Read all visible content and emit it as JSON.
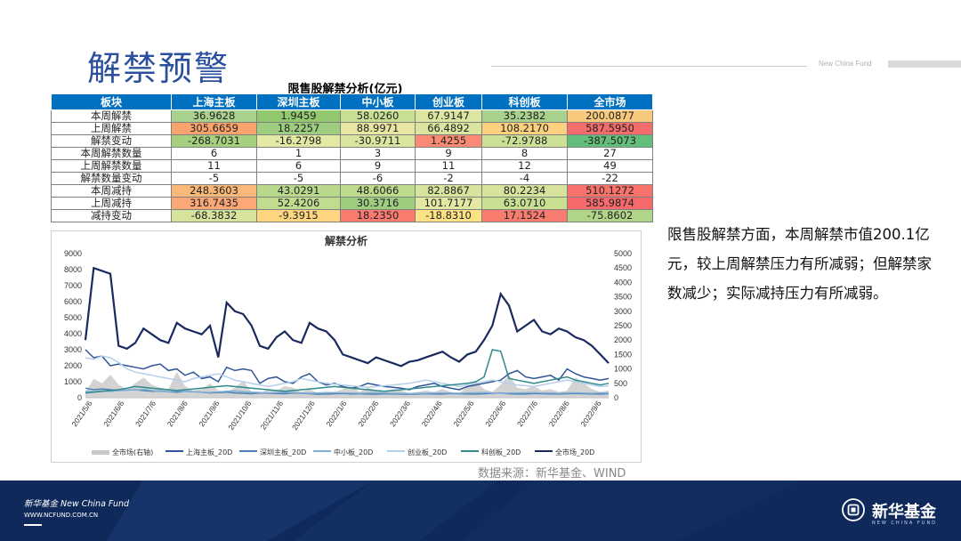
{
  "page": {
    "title": "解禁预警",
    "header_brand": "New China Fund",
    "table_title": "限售股解禁分析(亿元)",
    "source": "数据来源：新华基金、WIND",
    "note": "限售股解禁方面，本周解禁市值200.1亿元，较上周解禁压力有所减弱；但解禁家数减少；实际减持压力有所减弱。",
    "footer": {
      "brand": "新华基金 New China Fund",
      "url": "WWW.NCFUND.COM.CN",
      "logo_text": "新华基金",
      "logo_sub": "NEW CHINA FUND"
    }
  },
  "colors": {
    "header_blue": "#0070c0",
    "title_blue": "#2a4f9c",
    "footer_navy": "#0f2a5a"
  },
  "table": {
    "headers": [
      "板块",
      "上海主板",
      "深圳主板",
      "中小板",
      "创业板",
      "科创板",
      "全市场"
    ],
    "rows": [
      {
        "label": "本周解禁",
        "cells": [
          {
            "v": "36.9628",
            "c": "#a9d18e"
          },
          {
            "v": "1.9459",
            "c": "#92c96f"
          },
          {
            "v": "58.0260",
            "c": "#c6df93"
          },
          {
            "v": "67.9147",
            "c": "#dde6a0"
          },
          {
            "v": "35.2382",
            "c": "#a9d18e"
          },
          {
            "v": "200.0877",
            "c": "#f8c97d"
          }
        ]
      },
      {
        "label": "上周解禁",
        "cells": [
          {
            "v": "305.6659",
            "c": "#f9a46d"
          },
          {
            "v": "18.2257",
            "c": "#9fcd80"
          },
          {
            "v": "88.9971",
            "c": "#e9e6a4"
          },
          {
            "v": "66.4892",
            "c": "#dbe5a0"
          },
          {
            "v": "108.2170",
            "c": "#fbd17f"
          },
          {
            "v": "587.5950",
            "c": "#f56c6c"
          }
        ]
      },
      {
        "label": "解禁变动",
        "cells": [
          {
            "v": "-268.7031",
            "c": "#a6d07e"
          },
          {
            "v": "-16.2798",
            "c": "#e3e8a2"
          },
          {
            "v": "-30.9711",
            "c": "#dbe59f"
          },
          {
            "v": "1.4255",
            "c": "#f98a73"
          },
          {
            "v": "-72.9788",
            "c": "#cce196"
          },
          {
            "v": "-387.5073",
            "c": "#63be7b"
          }
        ]
      },
      {
        "label": "本周解禁数量",
        "cells": [
          {
            "v": "6",
            "c": "#ffffff"
          },
          {
            "v": "1",
            "c": "#ffffff"
          },
          {
            "v": "3",
            "c": "#ffffff"
          },
          {
            "v": "9",
            "c": "#ffffff"
          },
          {
            "v": "8",
            "c": "#ffffff"
          },
          {
            "v": "27",
            "c": "#ffffff"
          }
        ]
      },
      {
        "label": "上周解禁数量",
        "cells": [
          {
            "v": "11",
            "c": "#ffffff"
          },
          {
            "v": "6",
            "c": "#ffffff"
          },
          {
            "v": "9",
            "c": "#ffffff"
          },
          {
            "v": "11",
            "c": "#ffffff"
          },
          {
            "v": "12",
            "c": "#ffffff"
          },
          {
            "v": "49",
            "c": "#ffffff"
          }
        ]
      },
      {
        "label": "解禁数量变动",
        "cells": [
          {
            "v": "-5",
            "c": "#ffffff"
          },
          {
            "v": "-5",
            "c": "#ffffff"
          },
          {
            "v": "-6",
            "c": "#ffffff"
          },
          {
            "v": "-2",
            "c": "#ffffff"
          },
          {
            "v": "-4",
            "c": "#ffffff"
          },
          {
            "v": "-22",
            "c": "#ffffff"
          }
        ]
      },
      {
        "label": "本周减持",
        "cells": [
          {
            "v": "248.3603",
            "c": "#fbb979"
          },
          {
            "v": "43.0291",
            "c": "#b8d98b"
          },
          {
            "v": "48.6066",
            "c": "#bcdb8c"
          },
          {
            "v": "82.8867",
            "c": "#d7e49e"
          },
          {
            "v": "80.2234",
            "c": "#d5e39d"
          },
          {
            "v": "510.1272",
            "c": "#f8726c"
          }
        ]
      },
      {
        "label": "上周减持",
        "cells": [
          {
            "v": "316.7435",
            "c": "#fca776"
          },
          {
            "v": "52.4206",
            "c": "#c0dc8e"
          },
          {
            "v": "30.3716",
            "c": "#9ecd80"
          },
          {
            "v": "101.7177",
            "c": "#e3e8a3"
          },
          {
            "v": "63.0710",
            "c": "#c9e093"
          },
          {
            "v": "585.9874",
            "c": "#f8696b"
          }
        ]
      },
      {
        "label": "减持变动",
        "cells": [
          {
            "v": "-68.3832",
            "c": "#d6e39d"
          },
          {
            "v": "-9.3915",
            "c": "#fed680"
          },
          {
            "v": "18.2350",
            "c": "#f97a6f"
          },
          {
            "v": "-18.8310",
            "c": "#fde283"
          },
          {
            "v": "17.1524",
            "c": "#f97c70"
          },
          {
            "v": "-75.8602",
            "c": "#b2d689"
          }
        ]
      }
    ]
  },
  "chart_data": {
    "type": "line",
    "title": "解禁分析",
    "y_left_ticks": [
      "0",
      "1000",
      "2000",
      "3000",
      "4000",
      "5000",
      "6000",
      "7000",
      "8000",
      "9000"
    ],
    "y_right_ticks": [
      "0",
      "500",
      "1000",
      "1500",
      "2000",
      "2500",
      "3000",
      "3500",
      "4000",
      "4500",
      "5000"
    ],
    "ylim_left": [
      0,
      9000
    ],
    "ylim_right": [
      0,
      5000
    ],
    "x_ticks": [
      "2021/5/6",
      "2021/6/6",
      "2021/7/6",
      "2021/8/6",
      "2021/9/6",
      "2021/10/6",
      "2021/11/6",
      "2021/12/6",
      "2022/1/6",
      "2022/2/6",
      "2022/3/6",
      "2022/4/6",
      "2022/5/6",
      "2022/6/6",
      "2022/7/6",
      "2022/8/6",
      "2022/9/6"
    ],
    "legend_position": "bottom",
    "series": [
      {
        "name": "全市场(右轴)",
        "axis": "right",
        "color": "#c8c8c8",
        "style": "area",
        "values": [
          200,
          650,
          500,
          800,
          450,
          300,
          500,
          700,
          450,
          350,
          300,
          900,
          400,
          250,
          300,
          500,
          250,
          200,
          350,
          600,
          200,
          150,
          300,
          250,
          400,
          350,
          200,
          300,
          150,
          200,
          200,
          300,
          400,
          200,
          350,
          250,
          200,
          300,
          250,
          150,
          200,
          250,
          200,
          300,
          200,
          150,
          400,
          550,
          300,
          200,
          450,
          800,
          350,
          300,
          400,
          250,
          300,
          200,
          250,
          700,
          500,
          300,
          200,
          250
        ]
      },
      {
        "name": "上海主板_20D",
        "axis": "left",
        "color": "#2f5597",
        "style": "line",
        "values": [
          3000,
          2500,
          2600,
          2000,
          2100,
          2000,
          1900,
          1800,
          2000,
          2100,
          1700,
          1800,
          1400,
          1600,
          1200,
          1300,
          1000,
          1900,
          1700,
          1800,
          1700,
          900,
          1200,
          1300,
          1000,
          900,
          1300,
          1500,
          1000,
          800,
          900,
          700,
          600,
          700,
          900,
          800,
          700,
          650,
          600,
          500,
          700,
          800,
          900,
          700,
          600,
          500,
          700,
          800,
          900,
          1000,
          1100,
          1500,
          1700,
          1300,
          1200,
          1300,
          1400,
          1100,
          1800,
          1500,
          1300,
          1200,
          1100,
          1200
        ]
      },
      {
        "name": "深圳主板_20D",
        "axis": "left",
        "color": "#4a7fb5",
        "style": "line",
        "values": [
          600,
          500,
          550,
          500,
          450,
          480,
          500,
          450,
          400,
          420,
          380,
          350,
          400,
          380,
          350,
          300,
          320,
          350,
          300,
          280,
          250,
          300,
          280,
          260,
          250,
          300,
          280,
          250,
          220,
          230,
          250,
          260,
          240,
          250,
          230,
          220,
          250,
          240,
          230,
          220,
          230,
          250,
          240,
          230,
          260,
          250,
          240,
          230,
          250,
          280,
          300,
          250,
          230,
          240,
          260,
          250,
          240,
          230,
          250,
          260,
          250,
          240,
          230,
          250
        ]
      },
      {
        "name": "中小板_20D",
        "axis": "left",
        "color": "#7faed8",
        "style": "line",
        "values": [
          400,
          380,
          420,
          400,
          450,
          500,
          480,
          520,
          450,
          400,
          380,
          420,
          400,
          380,
          350,
          330,
          360,
          400,
          420,
          380,
          350,
          330,
          300,
          320,
          350,
          330,
          300,
          280,
          300,
          320,
          310,
          300,
          290,
          280,
          300,
          310,
          290,
          280,
          270,
          260,
          270,
          280,
          290,
          300,
          290,
          280,
          300,
          310,
          320,
          300,
          280,
          290,
          300,
          310,
          320,
          300,
          290,
          280,
          300,
          310,
          290,
          280,
          300,
          290
        ]
      },
      {
        "name": "创业板_20D",
        "axis": "left",
        "color": "#b4cfe9",
        "style": "line",
        "values": [
          2500,
          2400,
          2600,
          2500,
          2200,
          1800,
          1600,
          1500,
          1400,
          1300,
          1200,
          1100,
          1000,
          1200,
          1300,
          1400,
          1500,
          1300,
          1100,
          1000,
          900,
          800,
          700,
          800,
          900,
          1000,
          1200,
          1100,
          1000,
          900,
          850,
          800,
          750,
          700,
          650,
          700,
          750,
          800,
          850,
          900,
          1000,
          1100,
          1000,
          900,
          800,
          700,
          800,
          900,
          1000,
          1100,
          1000,
          900,
          800,
          750,
          700,
          800,
          900,
          1000,
          1100,
          1000,
          900,
          800,
          700,
          750
        ]
      },
      {
        "name": "科创板_20D",
        "axis": "left",
        "color": "#2e8b8b",
        "style": "line",
        "values": [
          300,
          350,
          400,
          450,
          500,
          600,
          700,
          650,
          600,
          550,
          500,
          450,
          500,
          550,
          600,
          650,
          700,
          750,
          700,
          650,
          600,
          550,
          500,
          450,
          400,
          450,
          500,
          550,
          600,
          650,
          700,
          650,
          600,
          550,
          500,
          450,
          400,
          450,
          500,
          550,
          600,
          650,
          700,
          750,
          800,
          850,
          900,
          1000,
          1300,
          3000,
          2900,
          1200,
          1100,
          1000,
          900,
          1000,
          1100,
          1200,
          1300,
          1100,
          1000,
          900,
          800,
          900
        ]
      },
      {
        "name": "全市场_20D",
        "axis": "right",
        "color": "#1a2a5e",
        "style": "line",
        "values": [
          2000,
          4500,
          4400,
          4300,
          1800,
          1700,
          1900,
          2400,
          2200,
          2000,
          1900,
          2600,
          2400,
          2300,
          2200,
          2500,
          1400,
          3300,
          3000,
          2900,
          2500,
          1800,
          1700,
          2100,
          2300,
          2000,
          1900,
          2600,
          2400,
          2300,
          2000,
          1500,
          1400,
          1300,
          1200,
          1400,
          1300,
          1200,
          1100,
          1250,
          1300,
          1400,
          1500,
          1600,
          1400,
          1250,
          1500,
          1600,
          2000,
          2500,
          3600,
          3200,
          2300,
          2500,
          2700,
          2300,
          2200,
          2400,
          2300,
          2100,
          2000,
          1800,
          1500,
          1200
        ]
      }
    ]
  }
}
